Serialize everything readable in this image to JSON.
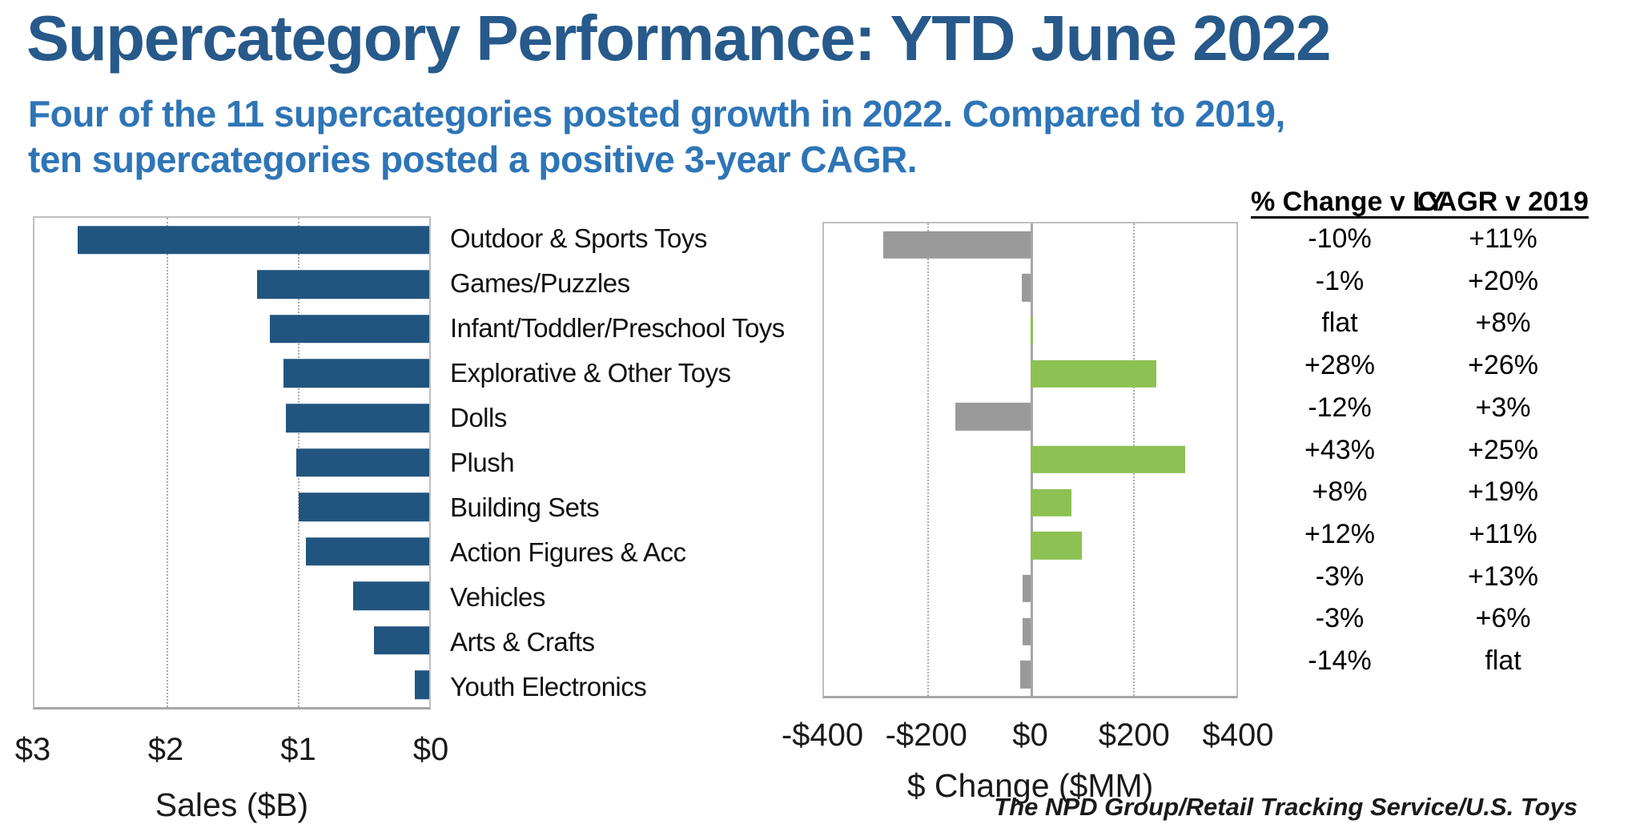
{
  "title": "Supercategory Performance: YTD June 2022",
  "subtitle_lines": [
    "Four of the 11 supercategories posted growth in 2022. Compared to 2019,",
    "ten supercategories posted a positive 3-year CAGR."
  ],
  "source": "The NPD Group/Retail Tracking Service/U.S. Toys",
  "colors": {
    "title_color": "#27598B",
    "subtitle_color": "#2E75B6",
    "sales_bar": "#21557F",
    "positive_bar": "#8DC153",
    "negative_bar": "#9A9A9A",
    "plot_border": "#BFBFBF",
    "gridline": "#ABABAB",
    "zero_line": "#A6A6A6",
    "text": "#1A1A1A"
  },
  "table": {
    "headers": [
      "% Change v LY",
      "CAGR v 2019"
    ]
  },
  "chart_data": [
    {
      "type": "bar",
      "orientation": "horizontal",
      "xlabel": "Sales ($B)",
      "x_ticks": [
        "$3",
        "$2",
        "$1",
        "$0"
      ],
      "xlim": [
        3,
        0
      ],
      "grid": "vertical dotted lines at $2 and $1",
      "legend": "none",
      "categories": [
        "Outdoor & Sports Toys",
        "Games/Puzzles",
        "Infant/Toddler/Preschool Toys",
        "Explorative & Other Toys",
        "Dolls",
        "Plush",
        "Building Sets",
        "Action Figures & Acc",
        "Vehicles",
        "Arts & Crafts",
        "Youth Electronics"
      ],
      "values": [
        2.67,
        1.31,
        1.21,
        1.11,
        1.09,
        1.01,
        0.99,
        0.94,
        0.58,
        0.42,
        0.11
      ],
      "bar_color": "#21557F"
    },
    {
      "type": "bar",
      "orientation": "horizontal",
      "xlabel": "$ Change ($MM)",
      "x_ticks": [
        "-$400",
        "-$200",
        "$0",
        "$200",
        "$400"
      ],
      "xlim": [
        -400,
        400
      ],
      "grid": "vertical dotted lines at -$200 and $200, solid zero axis",
      "legend": "none",
      "categories": [
        "Outdoor & Sports Toys",
        "Games/Puzzles",
        "Infant/Toddler/Preschool Toys",
        "Explorative & Other Toys",
        "Dolls",
        "Plush",
        "Building Sets",
        "Action Figures & Acc",
        "Vehicles",
        "Arts & Crafts",
        "Youth Electronics"
      ],
      "values": [
        -285,
        -17,
        5,
        245,
        -145,
        300,
        80,
        100,
        -15,
        -15,
        -20
      ],
      "positive_color": "#8DC153",
      "negative_color": "#9A9A9A"
    }
  ],
  "rows": [
    {
      "category": "Outdoor & Sports Toys",
      "sales_b": 2.67,
      "change_mm": -285,
      "pct_change_ly": "-10%",
      "cagr_v_2019": "+11%"
    },
    {
      "category": "Games/Puzzles",
      "sales_b": 1.31,
      "change_mm": -17,
      "pct_change_ly": "-1%",
      "cagr_v_2019": "+20%"
    },
    {
      "category": "Infant/Toddler/Preschool Toys",
      "sales_b": 1.21,
      "change_mm": 5,
      "pct_change_ly": "flat",
      "cagr_v_2019": "+8%"
    },
    {
      "category": "Explorative & Other Toys",
      "sales_b": 1.11,
      "change_mm": 245,
      "pct_change_ly": "+28%",
      "cagr_v_2019": "+26%"
    },
    {
      "category": "Dolls",
      "sales_b": 1.09,
      "change_mm": -145,
      "pct_change_ly": "-12%",
      "cagr_v_2019": "+3%"
    },
    {
      "category": "Plush",
      "sales_b": 1.01,
      "change_mm": 300,
      "pct_change_ly": "+43%",
      "cagr_v_2019": "+25%"
    },
    {
      "category": "Building Sets",
      "sales_b": 0.99,
      "change_mm": 80,
      "pct_change_ly": "+8%",
      "cagr_v_2019": "+19%"
    },
    {
      "category": "Action Figures & Acc",
      "sales_b": 0.94,
      "change_mm": 100,
      "pct_change_ly": "+12%",
      "cagr_v_2019": "+11%"
    },
    {
      "category": "Vehicles",
      "sales_b": 0.58,
      "change_mm": -15,
      "pct_change_ly": "-3%",
      "cagr_v_2019": "+13%"
    },
    {
      "category": "Arts & Crafts",
      "sales_b": 0.42,
      "change_mm": -15,
      "pct_change_ly": "-3%",
      "cagr_v_2019": "+6%"
    },
    {
      "category": "Youth Electronics",
      "sales_b": 0.11,
      "change_mm": -20,
      "pct_change_ly": "-14%",
      "cagr_v_2019": "flat"
    }
  ]
}
